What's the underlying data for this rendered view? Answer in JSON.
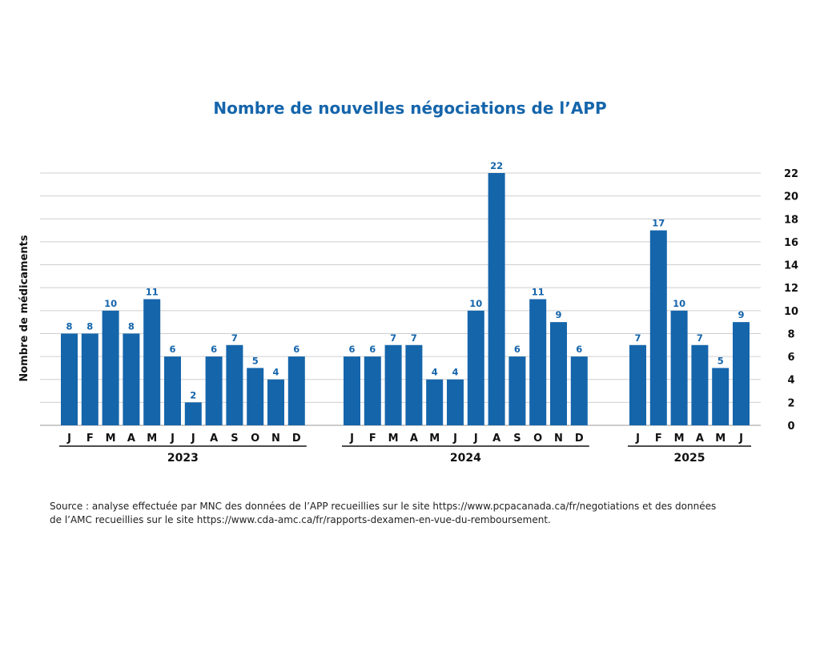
{
  "colors": {
    "bar": "#1565ab",
    "title": "#1565ab",
    "grid": "#cfcfcf",
    "text": "#111111"
  },
  "chart_data": {
    "type": "bar",
    "title": "Nombre de nouvelles négociations de l’APP",
    "ylabel": "Nombre de médicaments",
    "ylim": [
      0,
      22
    ],
    "yticks": [
      0,
      2,
      4,
      6,
      8,
      10,
      12,
      14,
      16,
      18,
      20,
      22
    ],
    "y_axis_position": "right",
    "grid": true,
    "groups": [
      {
        "year": "2023",
        "categories": [
          "J",
          "F",
          "M",
          "A",
          "M",
          "J",
          "J",
          "A",
          "S",
          "O",
          "N",
          "D"
        ],
        "values": [
          8,
          8,
          10,
          8,
          11,
          6,
          2,
          6,
          7,
          5,
          4,
          6
        ]
      },
      {
        "year": "2024",
        "categories": [
          "J",
          "F",
          "M",
          "A",
          "M",
          "J",
          "J",
          "A",
          "S",
          "O",
          "N",
          "D"
        ],
        "values": [
          6,
          6,
          7,
          7,
          4,
          4,
          10,
          22,
          6,
          11,
          9,
          6
        ]
      },
      {
        "year": "2025",
        "categories": [
          "J",
          "F",
          "M",
          "A",
          "M",
          "J"
        ],
        "values": [
          7,
          17,
          10,
          7,
          5,
          9
        ]
      }
    ]
  },
  "source": {
    "line1": "Source : analyse effectuée par MNC des données de l’APP recueillies sur le site https://www.pcpacanada.ca/fr/negotiations et des données",
    "line2": "de l’AMC recueillies sur le site https://www.cda-amc.ca/fr/rapports-dexamen-en-vue-du-remboursement."
  }
}
